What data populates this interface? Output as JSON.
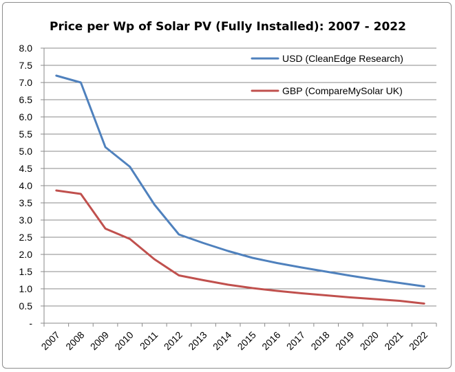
{
  "chart_data": {
    "type": "line",
    "title": "Price per Wp of Solar PV (Fully Installed): 2007 - 2022",
    "xlabel": "",
    "ylabel": "",
    "categories": [
      "2007",
      "2008",
      "2009",
      "2010",
      "2011",
      "2012",
      "2013",
      "2014",
      "2015",
      "2016",
      "2017",
      "2018",
      "2019",
      "2020",
      "2021",
      "2022"
    ],
    "y_tick_labels": [
      "-",
      "0.5",
      "1.0",
      "1.5",
      "2.0",
      "2.5",
      "3.0",
      "3.5",
      "4.0",
      "4.5",
      "5.0",
      "5.5",
      "6.0",
      "6.5",
      "7.0",
      "7.5",
      "8.0"
    ],
    "ylim": [
      0,
      8
    ],
    "grid": true,
    "legend_position": "top-right",
    "series": [
      {
        "name": "USD (CleanEdge Research)",
        "color": "#4f81bd",
        "values": [
          7.2,
          7.0,
          5.12,
          4.55,
          3.45,
          2.58,
          2.33,
          2.1,
          1.9,
          1.75,
          1.62,
          1.5,
          1.38,
          1.27,
          1.17,
          1.07
        ]
      },
      {
        "name": "GBP (CompareMySolar UK)",
        "color": "#c0504d",
        "values": [
          3.86,
          3.76,
          2.75,
          2.45,
          1.86,
          1.39,
          1.25,
          1.12,
          1.02,
          0.94,
          0.87,
          0.81,
          0.75,
          0.7,
          0.65,
          0.57
        ]
      }
    ]
  }
}
